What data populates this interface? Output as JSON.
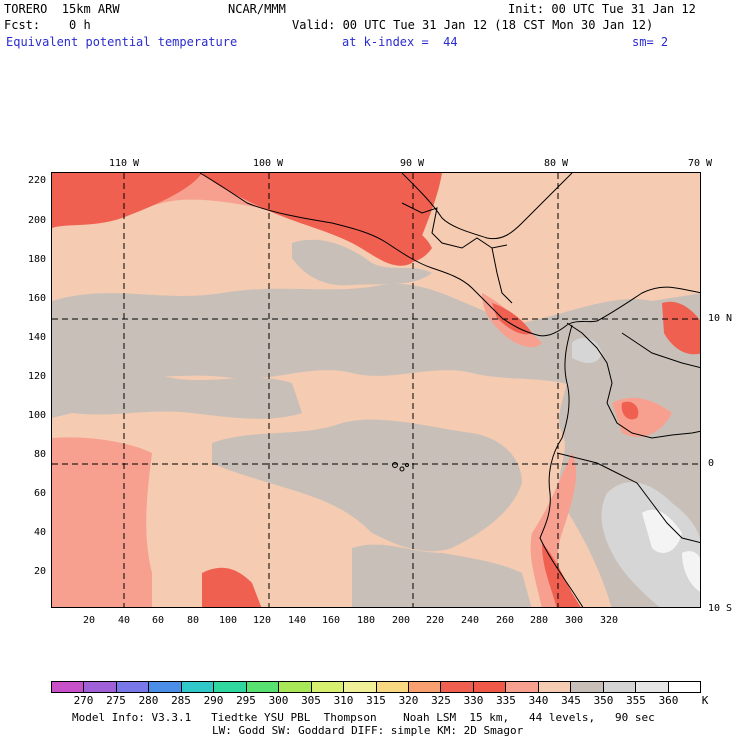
{
  "header": {
    "model": "TORERO  15km ARW",
    "org": "NCAR/MMM",
    "init": "Init: 00 UTC Tue 31 Jan 12",
    "fcst": "Fcst:    0 h",
    "valid": "Valid: 00 UTC Tue 31 Jan 12 (18 CST Mon 30 Jan 12)",
    "field": "Equivalent potential temperature",
    "level": "at k-index =  44",
    "smooth": "sm= 2"
  },
  "axes": {
    "y_ticks": [
      "220",
      "200",
      "180",
      "160",
      "140",
      "120",
      "100",
      "80",
      "60",
      "40",
      "20"
    ],
    "x_ticks": [
      "20",
      "40",
      "60",
      "80",
      "100",
      "120",
      "140",
      "160",
      "180",
      "200",
      "220",
      "240",
      "260",
      "280",
      "300",
      "320"
    ],
    "lon_labels": [
      "110 W",
      "100 W",
      "90 W",
      "80 W",
      "70 W"
    ],
    "lat_labels": [
      "10 N",
      "0",
      "10 S"
    ]
  },
  "colorbar": {
    "levels": [
      "270",
      "275",
      "280",
      "285",
      "290",
      "295",
      "300",
      "305",
      "310",
      "315",
      "320",
      "325",
      "330",
      "335",
      "340",
      "345",
      "350",
      "355",
      "360"
    ],
    "unit": "K",
    "colors": [
      "#c850c8",
      "#a060d8",
      "#7878e8",
      "#4a8ee8",
      "#30c8c8",
      "#30d8a0",
      "#58e070",
      "#a8e858",
      "#d8f070",
      "#f0f098",
      "#f8d880",
      "#f8a070",
      "#f06050",
      "#f05848",
      "#f8a090",
      "#f5cbb1",
      "#c8c0b8",
      "#d4d4d4",
      "#e6e6e6",
      "#ffffff"
    ]
  },
  "footer": {
    "line1": "Model Info: V3.3.1   Tiedtke YSU PBL  Thompson    Noah LSM  15 km,   44 levels,   90 sec",
    "line2": "LW: Godd SW: Goddard DIFF: simple KM: 2D Smagor"
  }
}
